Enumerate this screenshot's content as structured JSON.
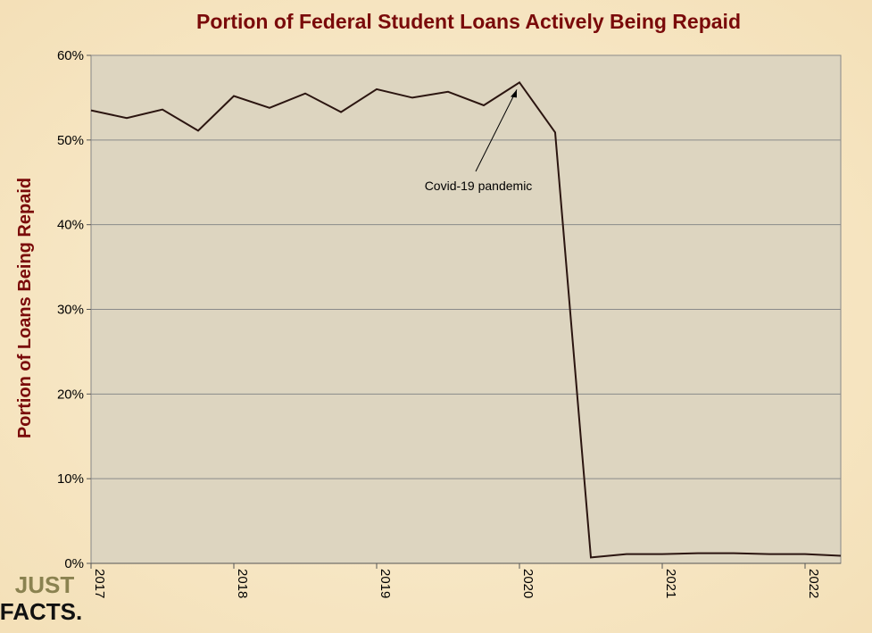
{
  "chart_data": {
    "type": "line",
    "title": "Portion of Federal Student Loans Actively Being Repaid",
    "y_label": "Portion of Loans Being Repaid",
    "x": [
      2017,
      2017.25,
      2017.5,
      2017.75,
      2018,
      2018.25,
      2018.5,
      2018.75,
      2019,
      2019.25,
      2019.5,
      2019.75,
      2020,
      2020.25,
      2020.5,
      2020.75,
      2021,
      2021.25,
      2021.5,
      2021.75,
      2022,
      2022.25
    ],
    "series": [
      {
        "color": "#2b1510",
        "values": [
          53.5,
          52.6,
          53.6,
          51.1,
          55.2,
          53.8,
          55.5,
          53.3,
          56.0,
          55.0,
          55.7,
          54.1,
          56.8,
          50.9,
          0.7,
          1.1,
          1.1,
          1.2,
          1.2,
          1.1,
          1.1,
          0.9
        ]
      }
    ],
    "xlim": [
      2017,
      2022.25
    ],
    "xticks": [
      2017,
      2018,
      2019,
      2020,
      2021,
      2022
    ],
    "ylim": [
      0,
      60
    ],
    "yticks": [
      {
        "value": 0,
        "label": "0%"
      },
      {
        "value": 10,
        "label": "10%"
      },
      {
        "value": 20,
        "label": "20%"
      },
      {
        "value": 30,
        "label": "30%"
      },
      {
        "value": 40,
        "label": "40%"
      },
      {
        "value": 50,
        "label": "50%"
      },
      {
        "value": 60,
        "label": "60%"
      }
    ],
    "grid": true,
    "annotation": {
      "text": "Covid-19  pandemic",
      "index": 12
    },
    "logo_text": [
      "JUST",
      "FACTS."
    ]
  }
}
